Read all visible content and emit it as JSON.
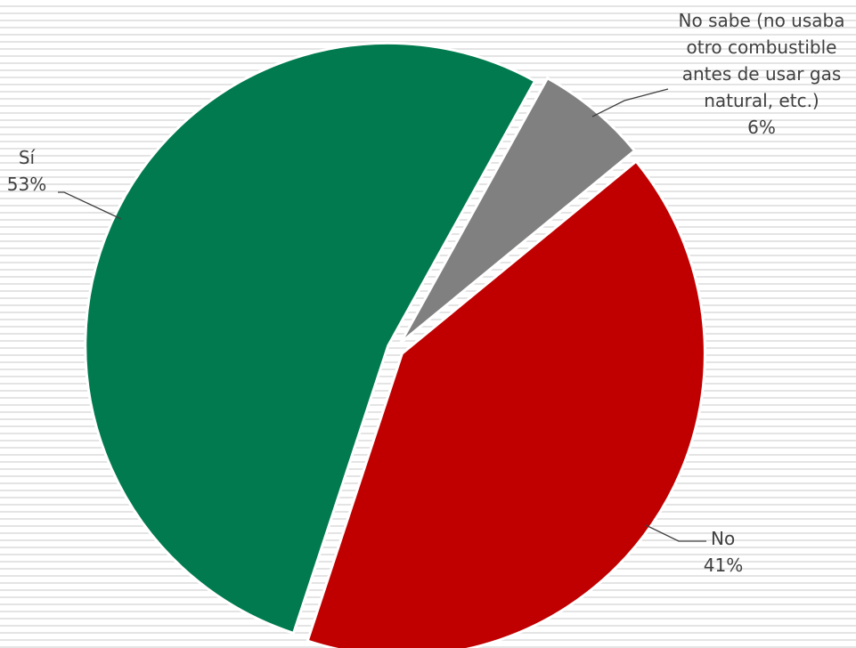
{
  "chart_data": {
    "type": "pie",
    "title": "",
    "slices": [
      {
        "label_lines": [
          "No sabe (no usaba",
          "otro combustible",
          "antes de usar gas",
          "natural, etc.)"
        ],
        "label": "No sabe (no usaba otro combustible antes de usar gas natural, etc.)",
        "value": 6,
        "value_label": "6%",
        "color": "#808080"
      },
      {
        "label_lines": [
          "No"
        ],
        "label": "No",
        "value": 41,
        "value_label": "41%",
        "color": "#C00000"
      },
      {
        "label_lines": [
          "Sí"
        ],
        "label": "Sí",
        "value": 53,
        "value_label": "53%",
        "color": "#007A4E"
      }
    ],
    "legend": "none",
    "data_labels": "outside with leader lines"
  }
}
